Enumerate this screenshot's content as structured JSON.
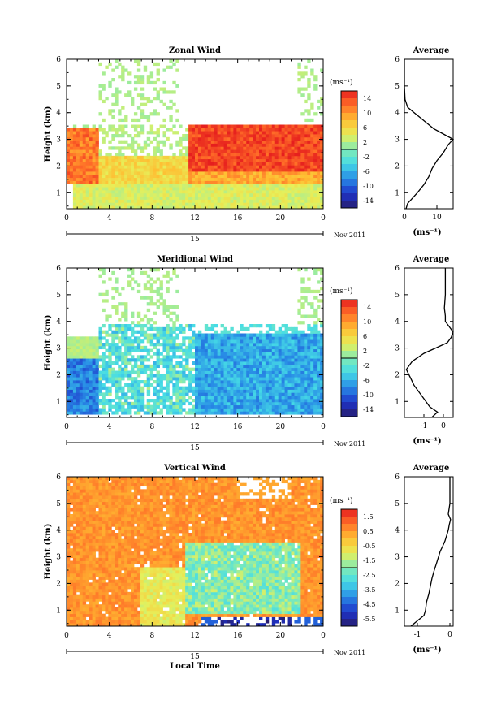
{
  "chart_data": [
    {
      "type": "heatmap",
      "title": "Zonal Wind",
      "ylabel": "Height (km)",
      "x_ticks": [
        "0",
        "4",
        "8",
        "12",
        "16",
        "20",
        "0"
      ],
      "y_ticks": [
        "1",
        "2",
        "3",
        "4",
        "5",
        "6"
      ],
      "xlim": [
        0,
        24
      ],
      "ylim": [
        0.4,
        6
      ],
      "date_bar_label": "15",
      "date_suffix": "Nov 2011",
      "colorbar_unit": "(ms⁻¹)",
      "colorbar_ticks": [
        "14",
        "10",
        "6",
        "2",
        "-2",
        "-6",
        "-10",
        "-14"
      ],
      "colorbar_range": [
        -16,
        16
      ],
      "average": {
        "title": "Average",
        "xlabel": "(ms⁻¹)",
        "x_ticks": [
          "0",
          "10"
        ],
        "xlim": [
          0,
          15
        ],
        "heights": [
          0.4,
          0.6,
          0.8,
          1.0,
          1.3,
          1.6,
          1.9,
          2.2,
          2.5,
          2.8,
          3.0,
          3.2,
          3.4,
          3.6,
          3.8,
          4.0,
          4.2,
          4.5,
          5.0,
          5.5,
          6.0
        ],
        "values": [
          0.5,
          1.0,
          2.5,
          4.0,
          6.0,
          7.5,
          8.5,
          10.0,
          12.0,
          13.5,
          15.0,
          12.0,
          9.0,
          7.0,
          5.0,
          3.0,
          1.0,
          0.2,
          0.0,
          0.0,
          0.0
        ]
      }
    },
    {
      "type": "heatmap",
      "title": "Meridional Wind",
      "ylabel": "Height (km)",
      "x_ticks": [
        "0",
        "4",
        "8",
        "12",
        "16",
        "20",
        "0"
      ],
      "y_ticks": [
        "1",
        "2",
        "3",
        "4",
        "5",
        "6"
      ],
      "xlim": [
        0,
        24
      ],
      "ylim": [
        0.4,
        6
      ],
      "date_bar_label": "15",
      "date_suffix": "Nov 2011",
      "colorbar_unit": "(ms⁻¹)",
      "colorbar_ticks": [
        "14",
        "10",
        "6",
        "2",
        "-2",
        "-6",
        "-10",
        "-14"
      ],
      "colorbar_range": [
        -16,
        16
      ],
      "average": {
        "title": "Average",
        "xlabel": "(ms⁻¹)",
        "x_ticks": [
          "-1",
          "0"
        ],
        "xlim": [
          -2,
          0.5
        ],
        "heights": [
          0.4,
          0.6,
          0.8,
          1.0,
          1.3,
          1.6,
          1.9,
          2.2,
          2.5,
          2.8,
          3.0,
          3.2,
          3.4,
          3.6,
          3.8,
          4.0,
          4.2,
          4.5,
          5.0,
          5.5,
          6.0
        ],
        "values": [
          -0.6,
          -0.3,
          -0.7,
          -0.9,
          -1.2,
          -1.5,
          -1.7,
          -1.9,
          -1.6,
          -1.0,
          -0.4,
          0.2,
          0.4,
          0.5,
          0.3,
          0.1,
          0.1,
          0.05,
          0.1,
          0.1,
          0.1
        ]
      }
    },
    {
      "type": "heatmap",
      "title": "Vertical Wind",
      "xlabel": "Local Time",
      "ylabel": "Height (km)",
      "x_ticks": [
        "0",
        "4",
        "8",
        "12",
        "16",
        "20",
        "0"
      ],
      "y_ticks": [
        "1",
        "2",
        "3",
        "4",
        "5",
        "6"
      ],
      "xlim": [
        0,
        24
      ],
      "ylim": [
        0.4,
        6
      ],
      "date_bar_label": "15",
      "date_suffix": "Nov 2011",
      "colorbar_unit": "(ms⁻¹)",
      "colorbar_ticks": [
        "1.5",
        "0.5",
        "-0.5",
        "-1.5",
        "-2.5",
        "-3.5",
        "-4.5",
        "-5.5"
      ],
      "colorbar_range": [
        -6,
        2
      ],
      "average": {
        "title": "Average",
        "xlabel": "(ms⁻¹)",
        "x_ticks": [
          "-1",
          "0"
        ],
        "xlim": [
          -1.4,
          0.1
        ],
        "heights": [
          0.4,
          0.6,
          0.8,
          1.0,
          1.3,
          1.6,
          1.9,
          2.2,
          2.5,
          2.8,
          3.0,
          3.2,
          3.4,
          3.6,
          3.8,
          4.0,
          4.2,
          4.4,
          4.6,
          5.0,
          5.5,
          6.0
        ],
        "values": [
          -1.2,
          -1.0,
          -0.8,
          -0.75,
          -0.72,
          -0.65,
          -0.6,
          -0.55,
          -0.48,
          -0.4,
          -0.35,
          -0.3,
          -0.22,
          -0.15,
          -0.1,
          -0.05,
          -0.02,
          0.02,
          -0.05,
          0.0,
          0.0,
          0.0
        ]
      }
    }
  ]
}
